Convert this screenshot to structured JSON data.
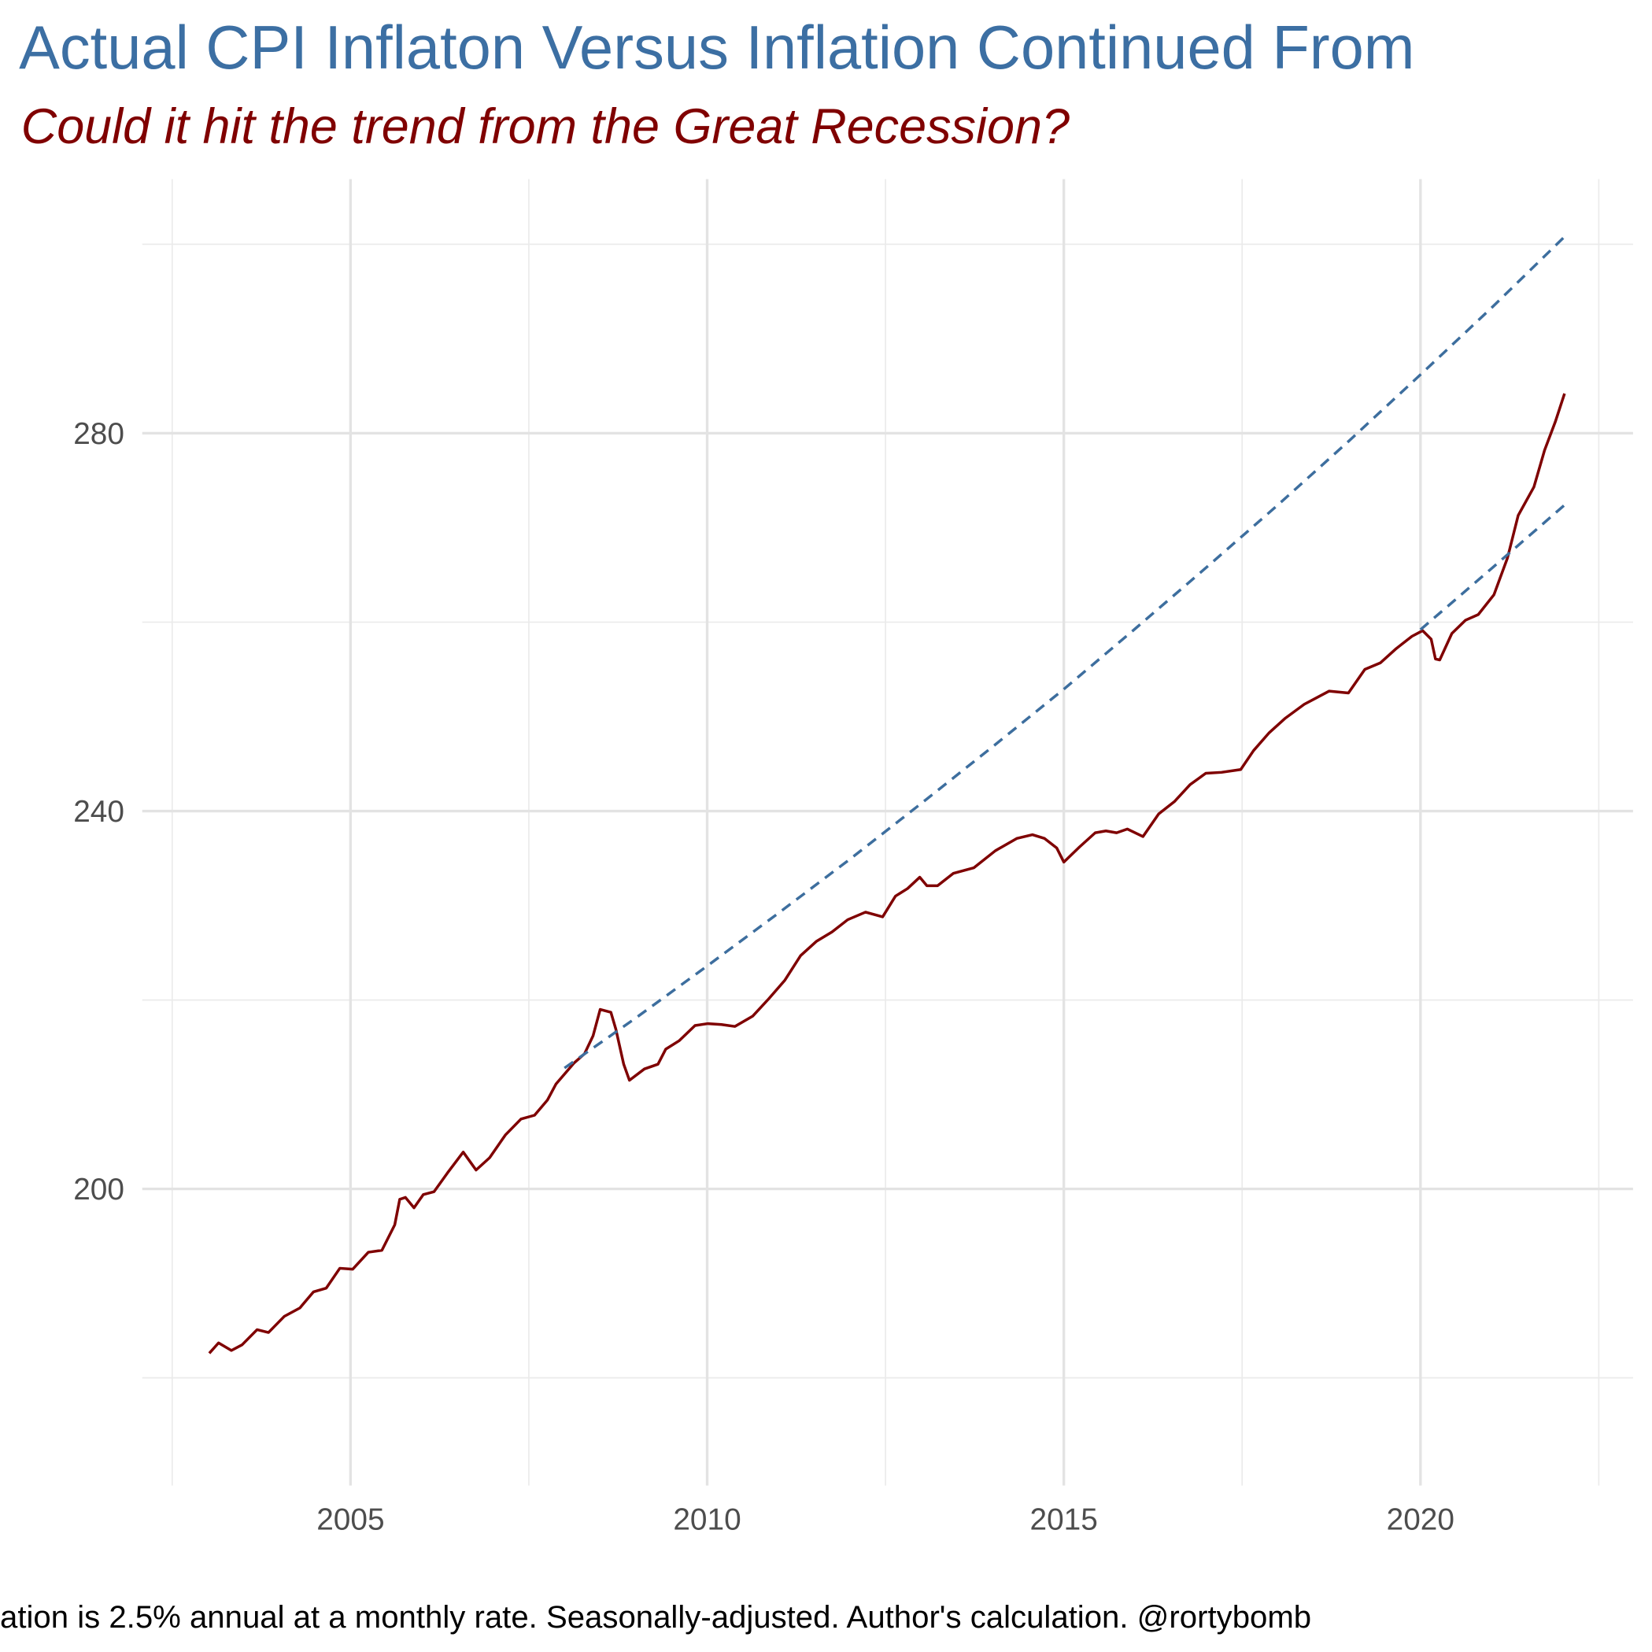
{
  "chart_data": {
    "type": "line",
    "title": "Actual CPI Inflaton Versus Inflation Continued From",
    "subtitle": "Could it hit the trend from the Great Recession?",
    "caption": "ation is 2.5% annual at a monthly rate. Seasonally-adjusted. Author's calculation. @rortybomb",
    "xlim": [
      2002.08,
      2022.98
    ],
    "ylim": [
      168.6,
      306.9
    ],
    "xticks": [
      2005,
      2010,
      2015,
      2020
    ],
    "yticks": [
      200,
      240,
      280
    ],
    "x_minor_grid": [
      2002.5,
      2007.5,
      2012.5,
      2017.5,
      2022.5
    ],
    "y_minor_grid": [
      180,
      220,
      260,
      300
    ],
    "grid": true,
    "series": [
      {
        "color": "#7f0000",
        "dash": false,
        "x": [
          2003.02,
          2003.15,
          2003.33,
          2003.48,
          2003.69,
          2003.85,
          2004.07,
          2004.29,
          2004.48,
          2004.66,
          2004.85,
          2005.03,
          2005.25,
          2005.44,
          2005.62,
          2005.69,
          2005.77,
          2005.89,
          2006.02,
          2006.17,
          2006.36,
          2006.58,
          2006.76,
          2006.95,
          2007.17,
          2007.39,
          2007.58,
          2007.76,
          2007.88,
          2008.13,
          2008.28,
          2008.4,
          2008.5,
          2008.65,
          2008.72,
          2008.83,
          2008.91,
          2009.12,
          2009.31,
          2009.42,
          2009.61,
          2009.83,
          2010.01,
          2010.2,
          2010.39,
          2010.64,
          2010.86,
          2011.09,
          2011.31,
          2011.53,
          2011.75,
          2011.97,
          2012.22,
          2012.46,
          2012.64,
          2012.81,
          2012.98,
          2013.08,
          2013.23,
          2013.45,
          2013.74,
          2014.04,
          2014.34,
          2014.56,
          2014.73,
          2014.9,
          2015.0,
          2015.22,
          2015.44,
          2015.59,
          2015.74,
          2015.89,
          2016.11,
          2016.33,
          2016.55,
          2016.77,
          2016.99,
          2017.21,
          2017.48,
          2017.66,
          2017.88,
          2018.1,
          2018.37,
          2018.72,
          2018.99,
          2019.22,
          2019.44,
          2019.66,
          2019.88,
          2020.03,
          2020.15,
          2020.21,
          2020.27,
          2020.44,
          2020.63,
          2020.81,
          2021.03,
          2021.22,
          2021.37,
          2021.59,
          2021.74,
          2021.89,
          2022.02
        ],
        "values": [
          182.6,
          183.7,
          182.9,
          183.5,
          185.1,
          184.8,
          186.5,
          187.4,
          189.1,
          189.5,
          191.6,
          191.5,
          193.3,
          193.5,
          196.2,
          198.9,
          199.1,
          198.0,
          199.4,
          199.7,
          201.7,
          203.9,
          202.0,
          203.3,
          205.7,
          207.4,
          207.8,
          209.4,
          211.1,
          213.3,
          214.3,
          216.2,
          219.0,
          218.7,
          216.9,
          213.2,
          211.5,
          212.7,
          213.2,
          214.8,
          215.7,
          217.3,
          217.5,
          217.4,
          217.2,
          218.3,
          220.1,
          222.1,
          224.7,
          226.2,
          227.2,
          228.5,
          229.3,
          228.8,
          231.0,
          231.8,
          233.0,
          232.1,
          232.1,
          233.4,
          234.0,
          235.8,
          237.1,
          237.5,
          237.1,
          236.1,
          234.6,
          236.2,
          237.7,
          237.9,
          237.7,
          238.1,
          237.3,
          239.7,
          241.0,
          242.8,
          244.0,
          244.1,
          244.4,
          246.4,
          248.3,
          249.8,
          251.3,
          252.7,
          252.5,
          255.0,
          255.7,
          257.2,
          258.5,
          259.1,
          258.2,
          256.1,
          256.0,
          258.8,
          260.2,
          260.8,
          262.9,
          266.8,
          271.3,
          274.3,
          278.2,
          281.2,
          284.2
        ]
      },
      {
        "color": "#3d6e9e",
        "dash": true,
        "x": [
          2008.0,
          2009.0,
          2010.0,
          2011.0,
          2012.0,
          2013.0,
          2014.0,
          2015.0,
          2016.0,
          2017.0,
          2018.0,
          2019.0,
          2020.0,
          2021.0,
          2022.02
        ],
        "values": [
          212.8,
          218.1,
          223.6,
          229.2,
          234.9,
          240.8,
          246.8,
          252.9,
          259.3,
          265.8,
          272.4,
          279.2,
          286.2,
          293.3,
          300.8
        ]
      },
      {
        "color": "#3d6e9e",
        "dash": true,
        "x": [
          2020.0,
          2021.0,
          2022.02
        ],
        "values": [
          259.2,
          265.7,
          272.4
        ]
      }
    ]
  }
}
